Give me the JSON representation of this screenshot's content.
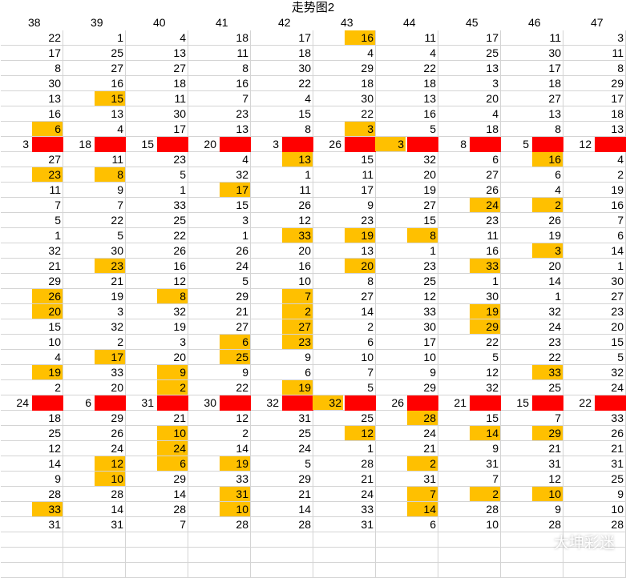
{
  "title": "走势图2",
  "columns": [
    "38",
    "39",
    "40",
    "41",
    "42",
    "43",
    "44",
    "45",
    "46",
    "47"
  ],
  "rows": [
    [
      "22",
      "1",
      "4",
      "18",
      "17",
      "16",
      "11",
      "17",
      "11",
      "3"
    ],
    [
      "17",
      "25",
      "13",
      "11",
      "18",
      "4",
      "4",
      "25",
      "30",
      "11"
    ],
    [
      "8",
      "27",
      "27",
      "8",
      "30",
      "29",
      "22",
      "13",
      "17",
      "8"
    ],
    [
      "30",
      "16",
      "18",
      "16",
      "22",
      "18",
      "18",
      "3",
      "18",
      "29"
    ],
    [
      "13",
      "15",
      "11",
      "7",
      "4",
      "30",
      "13",
      "20",
      "27",
      "17"
    ],
    [
      "16",
      "13",
      "30",
      "23",
      "15",
      "22",
      "16",
      "4",
      "13",
      "18"
    ],
    [
      "6",
      "4",
      "17",
      "13",
      "8",
      "3",
      "5",
      "18",
      "8",
      "13"
    ],
    [
      "3",
      "18",
      "15",
      "20",
      "3",
      "26",
      "3",
      "8",
      "5",
      "12"
    ],
    [
      "27",
      "11",
      "23",
      "4",
      "13",
      "15",
      "32",
      "6",
      "16",
      "4"
    ],
    [
      "23",
      "8",
      "5",
      "32",
      "1",
      "11",
      "20",
      "27",
      "6",
      "2"
    ],
    [
      "11",
      "9",
      "1",
      "17",
      "11",
      "17",
      "19",
      "26",
      "4",
      "19"
    ],
    [
      "7",
      "7",
      "33",
      "15",
      "26",
      "9",
      "27",
      "24",
      "2",
      "16"
    ],
    [
      "5",
      "22",
      "25",
      "3",
      "12",
      "23",
      "15",
      "23",
      "26",
      "7"
    ],
    [
      "1",
      "5",
      "22",
      "1",
      "33",
      "19",
      "8",
      "11",
      "19",
      "6"
    ],
    [
      "32",
      "30",
      "26",
      "26",
      "20",
      "13",
      "1",
      "16",
      "3",
      "14"
    ],
    [
      "21",
      "23",
      "16",
      "24",
      "16",
      "20",
      "23",
      "33",
      "20",
      "1"
    ],
    [
      "29",
      "21",
      "12",
      "5",
      "10",
      "8",
      "25",
      "1",
      "14",
      "30"
    ],
    [
      "26",
      "19",
      "8",
      "29",
      "7",
      "27",
      "12",
      "30",
      "1",
      "27"
    ],
    [
      "20",
      "3",
      "32",
      "21",
      "2",
      "14",
      "33",
      "19",
      "32",
      "23"
    ],
    [
      "15",
      "32",
      "19",
      "27",
      "27",
      "2",
      "30",
      "29",
      "24",
      "20"
    ],
    [
      "10",
      "2",
      "3",
      "6",
      "23",
      "6",
      "17",
      "22",
      "23",
      "15"
    ],
    [
      "4",
      "17",
      "20",
      "25",
      "9",
      "10",
      "10",
      "5",
      "22",
      "5"
    ],
    [
      "19",
      "33",
      "9",
      "9",
      "6",
      "7",
      "9",
      "12",
      "33",
      "32"
    ],
    [
      "2",
      "20",
      "2",
      "22",
      "19",
      "5",
      "29",
      "32",
      "25",
      "24"
    ],
    [
      "24",
      "6",
      "31",
      "30",
      "32",
      "32",
      "26",
      "21",
      "15",
      "22"
    ],
    [
      "18",
      "29",
      "21",
      "12",
      "31",
      "25",
      "28",
      "15",
      "7",
      "33"
    ],
    [
      "25",
      "26",
      "10",
      "2",
      "25",
      "12",
      "24",
      "14",
      "29",
      "26"
    ],
    [
      "12",
      "24",
      "24",
      "14",
      "24",
      "1",
      "21",
      "9",
      "21",
      "21"
    ],
    [
      "14",
      "12",
      "6",
      "19",
      "5",
      "28",
      "2",
      "31",
      "31",
      "31"
    ],
    [
      "9",
      "10",
      "29",
      "33",
      "29",
      "21",
      "31",
      "7",
      "12",
      "25"
    ],
    [
      "28",
      "28",
      "14",
      "31",
      "21",
      "24",
      "7",
      "2",
      "10",
      "9"
    ],
    [
      "33",
      "14",
      "28",
      "10",
      "14",
      "33",
      "14",
      "28",
      "9",
      "10"
    ],
    [
      "31",
      "31",
      "7",
      "28",
      "28",
      "31",
      "6",
      "10",
      "28",
      "28"
    ]
  ],
  "highlights": [
    [
      0,
      5
    ],
    [
      4,
      1
    ],
    [
      6,
      0
    ],
    [
      6,
      5
    ],
    [
      7,
      6
    ],
    [
      8,
      4
    ],
    [
      8,
      8
    ],
    [
      9,
      0
    ],
    [
      9,
      1
    ],
    [
      10,
      3
    ],
    [
      11,
      7
    ],
    [
      11,
      8
    ],
    [
      13,
      4
    ],
    [
      13,
      5
    ],
    [
      13,
      6
    ],
    [
      14,
      8
    ],
    [
      15,
      1
    ],
    [
      15,
      5
    ],
    [
      15,
      7
    ],
    [
      17,
      0
    ],
    [
      17,
      2
    ],
    [
      17,
      4
    ],
    [
      18,
      0
    ],
    [
      18,
      4
    ],
    [
      18,
      7
    ],
    [
      19,
      4
    ],
    [
      19,
      7
    ],
    [
      20,
      3
    ],
    [
      20,
      4
    ],
    [
      21,
      1
    ],
    [
      21,
      3
    ],
    [
      22,
      0
    ],
    [
      22,
      2
    ],
    [
      22,
      8
    ],
    [
      23,
      2
    ],
    [
      23,
      4
    ],
    [
      24,
      5
    ],
    [
      25,
      6
    ],
    [
      26,
      2
    ],
    [
      26,
      5
    ],
    [
      26,
      7
    ],
    [
      26,
      8
    ],
    [
      27,
      2
    ],
    [
      28,
      1
    ],
    [
      28,
      2
    ],
    [
      28,
      3
    ],
    [
      28,
      6
    ],
    [
      29,
      1
    ],
    [
      30,
      3
    ],
    [
      30,
      6
    ],
    [
      30,
      7
    ],
    [
      30,
      8
    ],
    [
      31,
      0
    ],
    [
      31,
      3
    ],
    [
      31,
      6
    ]
  ],
  "red_rows": [
    7,
    24
  ],
  "colors": {
    "highlight": "#ffc000",
    "marker": "#ff0000",
    "grid": "#d4d4d4"
  },
  "watermark": "大坤彩迷"
}
